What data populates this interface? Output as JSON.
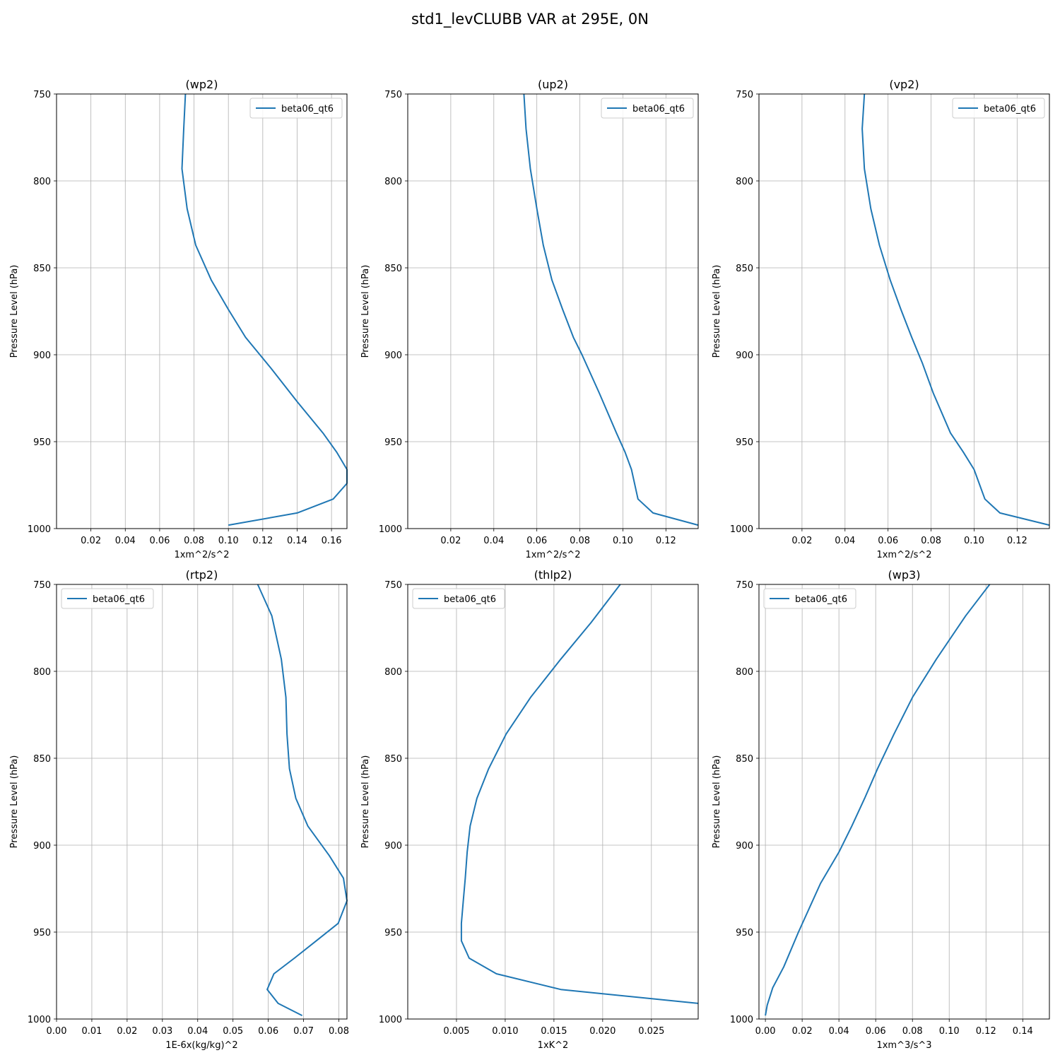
{
  "figure_title": "std1_levCLUBB VAR at 295E, 0N",
  "chart_data": [
    {
      "type": "line",
      "title": "(wp2)",
      "xlabel": "1xm^2/s^2",
      "ylabel": "Pressure Level (hPa)",
      "xlim": [
        0.0,
        0.169
      ],
      "ylim": [
        1000,
        750
      ],
      "xticks": [
        0.02,
        0.04,
        0.06,
        0.08,
        0.1,
        0.12,
        0.14,
        0.16
      ],
      "xtick_labels": [
        "0.02",
        "0.04",
        "0.06",
        "0.08",
        "0.10",
        "0.12",
        "0.14",
        "0.16"
      ],
      "yticks": [
        750,
        800,
        850,
        900,
        950,
        1000
      ],
      "ytick_labels": [
        "750",
        "800",
        "850",
        "900",
        "950",
        "1000"
      ],
      "grid": true,
      "legend_position": "upper-right",
      "series": [
        {
          "name": "beta06_qt6",
          "color": "#1f77b4",
          "x": [
            0.075,
            0.074,
            0.073,
            0.076,
            0.081,
            0.09,
            0.1,
            0.11,
            0.125,
            0.14,
            0.155,
            0.163,
            0.169,
            0.169,
            0.161,
            0.14,
            0.1
          ],
          "y": [
            750,
            770,
            793,
            816,
            837,
            857,
            874,
            890,
            908,
            927,
            945,
            956,
            966,
            974,
            983,
            991,
            998
          ]
        }
      ]
    },
    {
      "type": "line",
      "title": "(up2)",
      "xlabel": "1xm^2/s^2",
      "ylabel": "Pressure Level (hPa)",
      "xlim": [
        0.0,
        0.135
      ],
      "ylim": [
        1000,
        750
      ],
      "xticks": [
        0.02,
        0.04,
        0.06,
        0.08,
        0.1,
        0.12
      ],
      "xtick_labels": [
        "0.02",
        "0.04",
        "0.06",
        "0.08",
        "0.10",
        "0.12"
      ],
      "yticks": [
        750,
        800,
        850,
        900,
        950,
        1000
      ],
      "ytick_labels": [
        "750",
        "800",
        "850",
        "900",
        "950",
        "1000"
      ],
      "grid": true,
      "legend_position": "upper-right",
      "series": [
        {
          "name": "beta06_qt6",
          "color": "#1f77b4",
          "x": [
            0.054,
            0.055,
            0.057,
            0.06,
            0.063,
            0.067,
            0.072,
            0.077,
            0.081,
            0.089,
            0.097,
            0.101,
            0.104,
            0.107,
            0.114,
            0.135
          ],
          "y": [
            750,
            770,
            793,
            816,
            837,
            857,
            874,
            890,
            900,
            922,
            945,
            956,
            966,
            983,
            991,
            998
          ]
        }
      ]
    },
    {
      "type": "line",
      "title": "(vp2)",
      "xlabel": "1xm^2/s^2",
      "ylabel": "Pressure Level (hPa)",
      "xlim": [
        0.0,
        0.135
      ],
      "ylim": [
        1000,
        750
      ],
      "xticks": [
        0.02,
        0.04,
        0.06,
        0.08,
        0.1,
        0.12
      ],
      "xtick_labels": [
        "0.02",
        "0.04",
        "0.06",
        "0.08",
        "0.10",
        "0.12"
      ],
      "yticks": [
        750,
        800,
        850,
        900,
        950,
        1000
      ],
      "ytick_labels": [
        "750",
        "800",
        "850",
        "900",
        "950",
        "1000"
      ],
      "grid": true,
      "legend_position": "upper-right",
      "series": [
        {
          "name": "beta06_qt6",
          "color": "#1f77b4",
          "x": [
            0.049,
            0.048,
            0.049,
            0.052,
            0.056,
            0.061,
            0.066,
            0.071,
            0.076,
            0.081,
            0.089,
            0.095,
            0.1,
            0.105,
            0.112,
            0.135
          ],
          "y": [
            750,
            770,
            793,
            816,
            837,
            857,
            874,
            890,
            905,
            922,
            945,
            956,
            966,
            983,
            991,
            998
          ]
        }
      ]
    },
    {
      "type": "line",
      "title": "(rtp2)",
      "xlabel": "1E-6x(kg/kg)^2",
      "ylabel": "Pressure Level (hPa)",
      "xlim": [
        0.0,
        0.0823
      ],
      "ylim": [
        1000,
        750
      ],
      "xticks": [
        0.0,
        0.01,
        0.02,
        0.03,
        0.04,
        0.05,
        0.06,
        0.07,
        0.08
      ],
      "xtick_labels": [
        "0.00",
        "0.01",
        "0.02",
        "0.03",
        "0.04",
        "0.05",
        "0.06",
        "0.07",
        "0.08"
      ],
      "yticks": [
        750,
        800,
        850,
        900,
        950,
        1000
      ],
      "ytick_labels": [
        "750",
        "800",
        "850",
        "900",
        "950",
        "1000"
      ],
      "grid": true,
      "legend_position": "upper-left",
      "series": [
        {
          "name": "beta06_qt6",
          "color": "#1f77b4",
          "x": [
            0.057,
            0.061,
            0.0637,
            0.065,
            0.0653,
            0.066,
            0.0678,
            0.0712,
            0.0773,
            0.0813,
            0.0823,
            0.0798,
            0.0736,
            0.0674,
            0.0616,
            0.0597,
            0.0628,
            0.0696
          ],
          "y": [
            750,
            768,
            793,
            815,
            836,
            856,
            873,
            889,
            906,
            919,
            932,
            945,
            955,
            965,
            974,
            983,
            991,
            998
          ]
        }
      ]
    },
    {
      "type": "line",
      "title": "(thlp2)",
      "xlabel": "1xK^2",
      "ylabel": "Pressure Level (hPa)",
      "xlim": [
        0.0,
        0.0298
      ],
      "ylim": [
        1000,
        750
      ],
      "xticks": [
        0.005,
        0.01,
        0.015,
        0.02,
        0.025
      ],
      "xtick_labels": [
        "0.005",
        "0.010",
        "0.015",
        "0.020",
        "0.025"
      ],
      "yticks": [
        750,
        800,
        850,
        900,
        950,
        1000
      ],
      "ytick_labels": [
        "750",
        "800",
        "850",
        "900",
        "950",
        "1000"
      ],
      "grid": true,
      "legend_position": "upper-left",
      "series": [
        {
          "name": "beta06_qt6",
          "color": "#1f77b4",
          "x": [
            0.0218,
            0.0188,
            0.0157,
            0.0126,
            0.0101,
            0.0083,
            0.0071,
            0.0064,
            0.0061,
            0.0059,
            0.0057,
            0.0055,
            0.0055,
            0.0063,
            0.0091,
            0.0157,
            0.0298
          ],
          "y": [
            750,
            772,
            793,
            815,
            836,
            856,
            873,
            889,
            904,
            919,
            932,
            945,
            955,
            965,
            974,
            983,
            991
          ]
        }
      ]
    },
    {
      "type": "line",
      "title": "(wp3)",
      "xlabel": "1xm^3/s^3",
      "ylabel": "Pressure Level (hPa)",
      "xlim": [
        -0.0035,
        0.1545
      ],
      "ylim": [
        1000,
        750
      ],
      "xticks": [
        0.0,
        0.02,
        0.04,
        0.06,
        0.08,
        0.1,
        0.12,
        0.14
      ],
      "xtick_labels": [
        "0.00",
        "0.02",
        "0.04",
        "0.06",
        "0.08",
        "0.10",
        "0.12",
        "0.14"
      ],
      "yticks": [
        750,
        800,
        850,
        900,
        950,
        1000
      ],
      "ytick_labels": [
        "750",
        "800",
        "850",
        "900",
        "950",
        "1000"
      ],
      "grid": true,
      "legend_position": "upper-left",
      "series": [
        {
          "name": "beta06_qt6",
          "color": "#1f77b4",
          "x": [
            0.122,
            0.109,
            0.093,
            0.08,
            0.07,
            0.061,
            0.054,
            0.047,
            0.04,
            0.03,
            0.018,
            0.01,
            0.004,
            0.001,
            0.0
          ],
          "y": [
            750,
            768,
            793,
            815,
            836,
            856,
            873,
            889,
            904,
            922,
            950,
            970,
            982,
            992,
            998
          ]
        }
      ]
    }
  ]
}
